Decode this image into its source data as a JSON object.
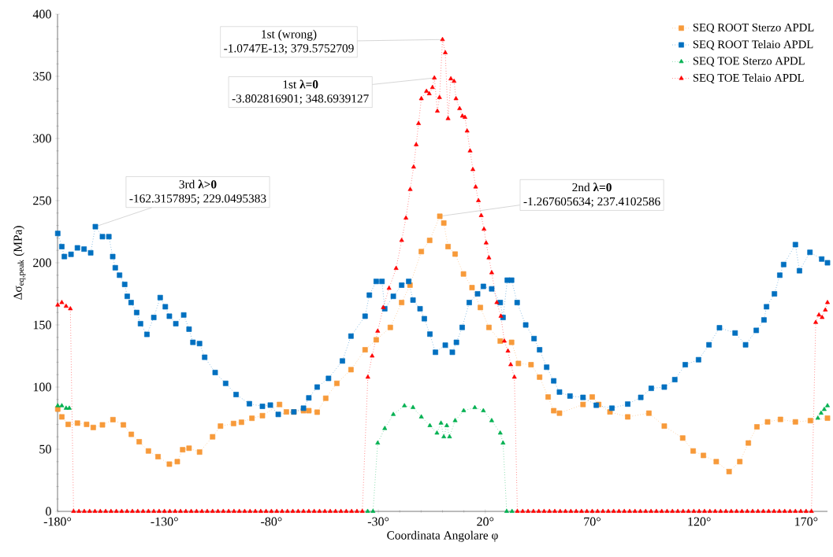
{
  "chart_data": {
    "type": "line",
    "xlabel": "Coordinata Angolare φ",
    "ylabel": "Δσ$_{eq,peak}$ (MPa)",
    "xlim": [
      -180,
      180
    ],
    "xticks": [
      {
        "value": -180,
        "label": "-180°"
      },
      {
        "value": -130,
        "label": "-130°"
      },
      {
        "value": -80,
        "label": "-80°"
      },
      {
        "value": -30,
        "label": "-30°"
      },
      {
        "value": 20,
        "label": "20°"
      },
      {
        "value": 70,
        "label": "70°"
      },
      {
        "value": 120,
        "label": "120°"
      },
      {
        "value": 170,
        "label": "170°"
      }
    ],
    "ylim": [
      0,
      400
    ],
    "yticks": [
      0,
      50,
      100,
      150,
      200,
      250,
      300,
      350,
      400
    ],
    "legend": "top right",
    "annotations": [
      "1st (wrong)",
      {
        "text": "-1.0747E-13; 379.5752709",
        "x": -1.0747e-13,
        "y": 379.5752709
      },
      "1st **λ=0**",
      {
        "text": "-3.802816901; 348.6939127",
        "x": -3.802816901,
        "y": 348.6939127
      },
      "3rd **λ>0**",
      {
        "text": "-162.3157895; 229.0495383",
        "x": -162.3157895,
        "y": 229.0495383
      },
      "2nd **λ=0**",
      {
        "text": "-1.267605634; 237.4102586",
        "x": -1.267605634,
        "y": 237.4102586
      }
    ],
    "series": [
      {
        "name": "SEQ ROOT Sterzo APDL",
        "color": "#f79a3a",
        "marker": "square",
        "line_style": "dotted",
        "x": [
          -179.9,
          -178,
          -175,
          -170.7,
          -166.4,
          -163.3,
          -159,
          -154.1,
          -149.2,
          -145.5,
          -141.8,
          -137.5,
          -133,
          -127.7,
          -124,
          -121.5,
          -118.5,
          -113.6,
          -107.5,
          -103.8,
          -97.7,
          -94,
          -89.1,
          -84.2,
          -76.2,
          -73,
          -69.5,
          -65,
          -62.5,
          -58.6,
          -54.6,
          -49.4,
          -42.8,
          -36.2,
          -31,
          -24.4,
          -19.1,
          -15.2,
          -9.9,
          -6,
          -1.267605634,
          0.6,
          2.6,
          5.9,
          9.8,
          13.8,
          17.7,
          21.7,
          27,
          32.3,
          35.5,
          41.4,
          45.4,
          49.4,
          52,
          54.7,
          65.7,
          70,
          73,
          78.3,
          86.6,
          96.5,
          103.7,
          112.3,
          117.2,
          122,
          128,
          134,
          139,
          143,
          147,
          152,
          158,
          165,
          172,
          180
        ],
        "values": [
          82.3,
          76,
          70,
          71,
          70,
          67.5,
          69.6,
          73.8,
          69.6,
          62,
          56,
          48.6,
          44,
          38,
          40,
          49.6,
          50.8,
          47.7,
          60,
          68.6,
          70.7,
          71.7,
          74.9,
          77,
          86,
          80,
          80,
          81,
          81,
          79.8,
          91,
          103,
          114,
          130,
          138,
          148,
          168,
          182,
          209,
          218,
          237.4102586,
          232,
          213,
          207,
          191,
          180,
          164,
          148,
          137,
          136,
          119,
          118,
          108,
          92,
          81,
          79,
          86,
          92,
          86,
          80,
          76,
          79,
          68.6,
          59,
          48.6,
          45,
          40,
          32,
          40,
          55,
          68,
          72,
          74,
          72,
          73,
          75
        ]
      },
      {
        "name": "SEQ ROOT Telaio APDL",
        "color": "#0070c0",
        "marker": "square",
        "line_style": "dotted",
        "x": [
          -179.9,
          -178,
          -176.8,
          -173.7,
          -170.7,
          -167.6,
          -164.5,
          -162.3157895,
          -159,
          -156,
          -154.2,
          -153,
          -151,
          -148.6,
          -147.4,
          -145.6,
          -143,
          -141.2,
          -138.2,
          -135,
          -132,
          -129.6,
          -127.7,
          -124.7,
          -121,
          -118.5,
          -116.7,
          -113.6,
          -111.2,
          -106.3,
          -101.4,
          -96.5,
          -90.3,
          -84.2,
          -80.5,
          -76.8,
          -69.5,
          -65,
          -62.5,
          -58.6,
          -53.3,
          -46.8,
          -42.8,
          -36.2,
          -34.2,
          -31,
          -28.3,
          -27,
          -23,
          -19.1,
          -15.8,
          -13.8,
          -10.5,
          -8.5,
          -5.9,
          -3.3,
          1.3,
          4.6,
          6.5,
          9.2,
          12.5,
          16.4,
          19.1,
          23,
          27,
          28.3,
          30.3,
          32.3,
          34.9,
          38.9,
          42.8,
          45.4,
          48.7,
          52,
          54.7,
          59.6,
          65.7,
          71.9,
          79.2,
          86.6,
          92.7,
          97.6,
          103.7,
          108.6,
          113.5,
          119.7,
          124.6,
          129.5,
          136.8,
          141.7,
          146.7,
          150.3,
          151.5,
          155.2,
          157.7,
          159.5,
          165,
          166.9,
          171.8,
          177.3,
          180
        ],
        "values": [
          223.6,
          213,
          205,
          206.8,
          212,
          211,
          208,
          229.0495383,
          221,
          221,
          205,
          196,
          190,
          182.6,
          173,
          168,
          160,
          151,
          142.4,
          156,
          172,
          164.6,
          157,
          151,
          158,
          146.6,
          136,
          135,
          124,
          111.7,
          103,
          94,
          86.6,
          84.5,
          85.5,
          78,
          80,
          83,
          91.3,
          100,
          107,
          121,
          141,
          157,
          174,
          185,
          185,
          163,
          173,
          182,
          185,
          170,
          163,
          155,
          142.6,
          128,
          133.7,
          128,
          136,
          148,
          168,
          175,
          181,
          179,
          168,
          156,
          186,
          186,
          168,
          150,
          139,
          130,
          116,
          105,
          96,
          92.8,
          91.7,
          85.4,
          83,
          86.3,
          91.7,
          99,
          100,
          106,
          118,
          122,
          134,
          147.7,
          143.5,
          134,
          145.6,
          154,
          164.6,
          175,
          190,
          198.6,
          214.6,
          193.6,
          208.4,
          203,
          200
        ]
      },
      {
        "name": "SEQ TOE Sterzo APDL",
        "color": "#00b050",
        "marker": "triangle",
        "line_style": "dotted",
        "x": [
          -179.9,
          -178,
          -176,
          -174.5,
          -172.5,
          -170,
          -167.5,
          -165,
          -162.5,
          -160,
          -157.5,
          -155,
          -152.5,
          -150,
          -147.5,
          -145,
          -142.5,
          -140,
          -137.5,
          -135,
          -132.5,
          -130,
          -127.5,
          -125,
          -122.5,
          -120,
          -117.5,
          -115,
          -112.5,
          -110,
          -107.5,
          -105,
          -102.5,
          -100,
          -97.5,
          -95,
          -92.5,
          -90,
          -87.5,
          -85,
          -82.5,
          -80,
          -77.5,
          -75,
          -72.5,
          -70,
          -67.5,
          -65,
          -62.5,
          -60,
          -57.5,
          -55,
          -52.5,
          -50,
          -47.5,
          -45,
          -42.5,
          -40,
          -37.5,
          -35,
          -32.5,
          -30.3,
          -27,
          -23,
          -17.8,
          -13.8,
          -9.9,
          -5.9,
          -2.6,
          -0.7,
          0.6,
          2,
          3.3,
          5.9,
          9.9,
          15.1,
          19.1,
          23,
          27,
          28.3,
          30,
          32.5,
          35,
          37.5,
          40,
          42.5,
          45,
          47.5,
          50,
          52.5,
          55,
          57.5,
          60,
          62.5,
          65,
          67.5,
          70,
          72.5,
          75,
          77.5,
          80,
          82.5,
          85,
          87.5,
          90,
          92.5,
          95,
          97.5,
          100,
          102.5,
          105,
          107.5,
          110,
          112.5,
          115,
          117.5,
          120,
          122.5,
          125,
          127.5,
          130,
          132.5,
          135,
          137.5,
          140,
          142.5,
          145,
          147.5,
          150,
          152.5,
          155,
          157.5,
          160,
          162.5,
          165,
          167.5,
          170,
          172.5,
          175.5,
          177,
          178.5,
          180
        ],
        "values": [
          85,
          85,
          83,
          83,
          null,
          null,
          null,
          null,
          null,
          null,
          null,
          null,
          null,
          null,
          null,
          null,
          null,
          null,
          null,
          null,
          null,
          null,
          null,
          null,
          null,
          null,
          null,
          null,
          null,
          null,
          null,
          null,
          null,
          null,
          null,
          null,
          null,
          null,
          null,
          null,
          null,
          null,
          null,
          null,
          null,
          null,
          null,
          null,
          null,
          null,
          null,
          null,
          null,
          null,
          null,
          null,
          null,
          null,
          null,
          0,
          0,
          55,
          66.7,
          78,
          85,
          83.6,
          76,
          69,
          63,
          71,
          60,
          69,
          60,
          73,
          81,
          83.5,
          81,
          73,
          63,
          55,
          0,
          0,
          null,
          null,
          null,
          null,
          null,
          null,
          null,
          null,
          null,
          null,
          null,
          null,
          null,
          null,
          null,
          null,
          null,
          null,
          null,
          null,
          null,
          null,
          null,
          null,
          null,
          null,
          null,
          null,
          null,
          null,
          null,
          null,
          null,
          null,
          null,
          null,
          null,
          null,
          null,
          null,
          null,
          null,
          null,
          null,
          null,
          null,
          null,
          null,
          null,
          null,
          null,
          null,
          null,
          null,
          null,
          null,
          75,
          79,
          82,
          85
        ]
      },
      {
        "name": "SEQ TOE Telaio APDL",
        "color": "#ff0000",
        "marker": "triangle",
        "line_style": "dotted",
        "x": [
          -179.9,
          -178,
          -176,
          -174,
          -172.5,
          -170,
          -167.5,
          -165,
          -162.5,
          -160,
          -157.5,
          -155,
          -152.5,
          -150,
          -147.5,
          -145,
          -142.5,
          -140,
          -137.5,
          -135,
          -132.5,
          -130,
          -127.5,
          -125,
          -122.5,
          -120,
          -117.5,
          -115,
          -112.5,
          -110,
          -107.5,
          -105,
          -102.5,
          -100,
          -97.5,
          -95,
          -92.5,
          -90,
          -87.5,
          -85,
          -82.5,
          -80,
          -77.5,
          -75,
          -72.5,
          -70,
          -67.5,
          -65,
          -62.5,
          -60,
          -57.5,
          -55,
          -52.5,
          -50,
          -47.5,
          -45,
          -42.5,
          -40,
          -37.5,
          -34.9,
          -32.9,
          -30.3,
          -27.7,
          -25,
          -21.7,
          -19.1,
          -17.1,
          -15.1,
          -13.5,
          -12.3,
          -11.2,
          -9.9,
          -7.5,
          -6.2,
          -4.7,
          -3.802816901,
          -2.4,
          -1.4,
          -1.0747e-13,
          1.3,
          2.6,
          3.9,
          5.4,
          6.3,
          8,
          9.3,
          10.5,
          11.5,
          12.9,
          14.2,
          15.5,
          16.8,
          18.1,
          19.4,
          20.4,
          21.7,
          23,
          25.4,
          27.3,
          28.9,
          30.6,
          31.9,
          33.6,
          35,
          37.5,
          40,
          42.5,
          45,
          47.5,
          50,
          52.5,
          55,
          57.5,
          60,
          62.5,
          65,
          67.5,
          70,
          72.5,
          75,
          77.5,
          80,
          82.5,
          85,
          87.5,
          90,
          92.5,
          95,
          97.5,
          100,
          102.5,
          105,
          107.5,
          110,
          112.5,
          115,
          117.5,
          120,
          122.5,
          125,
          127.5,
          130,
          132.5,
          135,
          137.5,
          140,
          142.5,
          145,
          147.5,
          150,
          152.5,
          155,
          157.5,
          160,
          162.5,
          165,
          167.5,
          170,
          172.5,
          174.5,
          176,
          177.5,
          179,
          180
        ],
        "values": [
          166,
          168,
          165,
          163,
          0,
          0,
          0,
          0,
          0,
          0,
          0,
          0,
          0,
          0,
          0,
          0,
          0,
          0,
          0,
          0,
          0,
          0,
          0,
          0,
          0,
          0,
          0,
          0,
          0,
          0,
          0,
          0,
          0,
          0,
          0,
          0,
          0,
          0,
          0,
          0,
          0,
          0,
          0,
          0,
          0,
          0,
          0,
          0,
          0,
          0,
          0,
          0,
          0,
          0,
          0,
          0,
          0,
          0,
          0,
          108,
          125,
          145,
          164,
          179.5,
          195.5,
          218,
          236,
          259,
          277,
          295,
          312,
          332,
          338,
          336,
          341,
          348.6939127,
          322,
          333,
          379.5752709,
          369,
          316,
          348,
          346,
          332,
          324,
          318,
          317,
          306,
          290,
          275,
          261,
          250,
          238,
          227,
          216,
          204,
          192,
          168,
          157,
          137,
          129,
          118,
          108,
          0,
          0,
          0,
          0,
          0,
          0,
          0,
          0,
          0,
          0,
          0,
          0,
          0,
          0,
          0,
          0,
          0,
          0,
          0,
          0,
          0,
          0,
          0,
          0,
          0,
          0,
          0,
          0,
          0,
          0,
          0,
          0,
          0,
          0,
          0,
          0,
          0,
          0,
          0,
          0,
          0,
          0,
          0,
          0,
          0,
          0,
          0,
          0,
          0,
          0,
          0,
          0,
          0,
          0,
          0,
          0,
          152,
          158,
          156,
          162,
          168
        ]
      }
    ]
  }
}
